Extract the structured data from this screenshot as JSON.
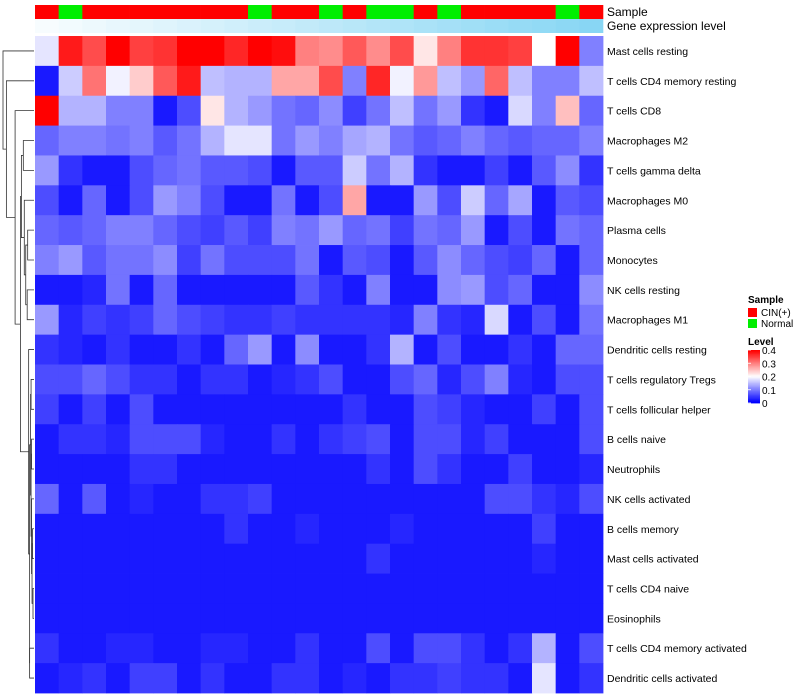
{
  "chart_data": {
    "type": "heatmap",
    "annotation_labels": {
      "sample": "Sample",
      "gene_expression_level": "Gene expression level"
    },
    "rows": [
      "Mast cells resting",
      "T cells CD4 memory resting",
      "T cells CD8",
      "Macrophages M2",
      "T cells gamma delta",
      "Macrophages M0",
      "Plasma cells",
      "Monocytes",
      "NK cells resting",
      "Macrophages M1",
      "Dendritic cells resting",
      "T cells regulatory  Tregs",
      "T cells follicular helper",
      "B cells naive",
      "Neutrophils",
      "NK cells activated",
      "B cells memory",
      "Mast cells activated",
      "T cells CD4 naive",
      "Eosinophils",
      "T cells CD4 memory activated",
      "Dendritic cells activated"
    ],
    "sample_groups": [
      "CIN(+)",
      "Normal",
      "CIN(+)",
      "CIN(+)",
      "CIN(+)",
      "CIN(+)",
      "CIN(+)",
      "CIN(+)",
      "CIN(+)",
      "Normal",
      "CIN(+)",
      "CIN(+)",
      "Normal",
      "CIN(+)",
      "Normal",
      "Normal",
      "CIN(+)",
      "Normal",
      "CIN(+)",
      "CIN(+)",
      "CIN(+)",
      "CIN(+)",
      "Normal",
      "CIN(+)"
    ],
    "gene_expression_level": [
      0.95,
      0.92,
      0.89,
      0.86,
      0.83,
      0.8,
      0.77,
      0.74,
      0.71,
      0.68,
      0.65,
      0.62,
      0.59,
      0.56,
      0.53,
      0.5,
      0.47,
      0.44,
      0.41,
      0.38,
      0.35,
      0.32,
      0.29,
      0.26
    ],
    "values": [
      [
        0.18,
        0.38,
        0.34,
        0.4,
        0.35,
        0.36,
        0.4,
        0.4,
        0.37,
        0.4,
        0.39,
        0.3,
        0.29,
        0.33,
        0.29,
        0.34,
        0.22,
        0.3,
        0.36,
        0.36,
        0.35,
        0.2,
        0.4,
        0.1
      ],
      [
        0.02,
        0.16,
        0.31,
        0.19,
        0.24,
        0.33,
        0.38,
        0.15,
        0.14,
        0.14,
        0.27,
        0.27,
        0.34,
        0.1,
        0.37,
        0.19,
        0.28,
        0.15,
        0.12,
        0.32,
        0.15,
        0.1,
        0.1,
        0.15
      ],
      [
        0.4,
        0.14,
        0.14,
        0.1,
        0.1,
        0.02,
        0.06,
        0.22,
        0.14,
        0.12,
        0.09,
        0.08,
        0.11,
        0.05,
        0.09,
        0.15,
        0.09,
        0.12,
        0.04,
        0.02,
        0.17,
        0.1,
        0.25,
        0.08
      ],
      [
        0.08,
        0.1,
        0.1,
        0.09,
        0.1,
        0.07,
        0.09,
        0.14,
        0.18,
        0.18,
        0.09,
        0.12,
        0.1,
        0.13,
        0.14,
        0.09,
        0.07,
        0.08,
        0.1,
        0.08,
        0.07,
        0.08,
        0.08,
        0.1
      ],
      [
        0.12,
        0.04,
        0.02,
        0.02,
        0.06,
        0.08,
        0.09,
        0.07,
        0.07,
        0.06,
        0.02,
        0.07,
        0.07,
        0.16,
        0.09,
        0.14,
        0.04,
        0.02,
        0.02,
        0.05,
        0.02,
        0.07,
        0.11,
        0.04
      ],
      [
        0.06,
        0.02,
        0.08,
        0.02,
        0.06,
        0.12,
        0.1,
        0.06,
        0.02,
        0.02,
        0.09,
        0.02,
        0.06,
        0.27,
        0.02,
        0.02,
        0.12,
        0.06,
        0.16,
        0.08,
        0.13,
        0.02,
        0.07,
        0.06
      ],
      [
        0.08,
        0.07,
        0.08,
        0.1,
        0.1,
        0.08,
        0.06,
        0.05,
        0.07,
        0.05,
        0.1,
        0.09,
        0.12,
        0.08,
        0.09,
        0.05,
        0.09,
        0.08,
        0.12,
        0.02,
        0.06,
        0.02,
        0.09,
        0.08
      ],
      [
        0.1,
        0.12,
        0.07,
        0.09,
        0.09,
        0.11,
        0.05,
        0.09,
        0.06,
        0.06,
        0.06,
        0.09,
        0.02,
        0.07,
        0.06,
        0.02,
        0.07,
        0.11,
        0.08,
        0.06,
        0.05,
        0.08,
        0.02,
        0.08
      ],
      [
        0.02,
        0.02,
        0.03,
        0.09,
        0.02,
        0.08,
        0.02,
        0.02,
        0.02,
        0.02,
        0.02,
        0.07,
        0.04,
        0.02,
        0.1,
        0.02,
        0.02,
        0.11,
        0.12,
        0.06,
        0.08,
        0.02,
        0.02,
        0.11
      ],
      [
        0.12,
        0.03,
        0.05,
        0.04,
        0.05,
        0.08,
        0.06,
        0.05,
        0.04,
        0.04,
        0.05,
        0.04,
        0.04,
        0.04,
        0.04,
        0.03,
        0.1,
        0.04,
        0.03,
        0.17,
        0.02,
        0.06,
        0.02,
        0.09
      ],
      [
        0.04,
        0.03,
        0.02,
        0.04,
        0.02,
        0.02,
        0.04,
        0.02,
        0.08,
        0.12,
        0.02,
        0.11,
        0.02,
        0.02,
        0.04,
        0.14,
        0.02,
        0.06,
        0.02,
        0.02,
        0.04,
        0.02,
        0.08,
        0.08
      ],
      [
        0.06,
        0.06,
        0.08,
        0.06,
        0.04,
        0.04,
        0.02,
        0.04,
        0.04,
        0.02,
        0.03,
        0.04,
        0.06,
        0.02,
        0.02,
        0.06,
        0.08,
        0.03,
        0.06,
        0.1,
        0.03,
        0.02,
        0.06,
        0.06
      ],
      [
        0.05,
        0.02,
        0.05,
        0.02,
        0.06,
        0.02,
        0.02,
        0.02,
        0.02,
        0.02,
        0.02,
        0.02,
        0.02,
        0.04,
        0.02,
        0.02,
        0.06,
        0.05,
        0.03,
        0.02,
        0.02,
        0.05,
        0.02,
        0.06
      ],
      [
        0.02,
        0.04,
        0.04,
        0.03,
        0.06,
        0.06,
        0.06,
        0.03,
        0.02,
        0.02,
        0.04,
        0.02,
        0.04,
        0.05,
        0.06,
        0.02,
        0.06,
        0.06,
        0.03,
        0.05,
        0.02,
        0.02,
        0.02,
        0.06
      ],
      [
        0.02,
        0.02,
        0.02,
        0.02,
        0.04,
        0.04,
        0.02,
        0.02,
        0.02,
        0.02,
        0.02,
        0.02,
        0.02,
        0.02,
        0.04,
        0.02,
        0.06,
        0.04,
        0.02,
        0.02,
        0.05,
        0.02,
        0.02,
        0.03
      ],
      [
        0.08,
        0.02,
        0.07,
        0.02,
        0.03,
        0.02,
        0.02,
        0.04,
        0.04,
        0.05,
        0.02,
        0.02,
        0.02,
        0.02,
        0.02,
        0.02,
        0.02,
        0.02,
        0.02,
        0.06,
        0.06,
        0.04,
        0.03,
        0.06
      ],
      [
        0.02,
        0.02,
        0.02,
        0.02,
        0.02,
        0.02,
        0.02,
        0.02,
        0.04,
        0.02,
        0.02,
        0.03,
        0.02,
        0.02,
        0.02,
        0.03,
        0.02,
        0.02,
        0.02,
        0.02,
        0.02,
        0.05,
        0.02,
        0.02
      ],
      [
        0.02,
        0.02,
        0.02,
        0.02,
        0.02,
        0.02,
        0.02,
        0.02,
        0.02,
        0.02,
        0.02,
        0.02,
        0.02,
        0.02,
        0.04,
        0.02,
        0.02,
        0.02,
        0.02,
        0.02,
        0.02,
        0.03,
        0.02,
        0.02
      ],
      [
        0.02,
        0.02,
        0.02,
        0.02,
        0.02,
        0.02,
        0.02,
        0.02,
        0.02,
        0.02,
        0.02,
        0.02,
        0.02,
        0.02,
        0.02,
        0.02,
        0.02,
        0.02,
        0.02,
        0.02,
        0.02,
        0.02,
        0.02,
        0.02
      ],
      [
        0.02,
        0.02,
        0.02,
        0.02,
        0.02,
        0.02,
        0.02,
        0.02,
        0.02,
        0.02,
        0.02,
        0.02,
        0.02,
        0.02,
        0.02,
        0.02,
        0.02,
        0.02,
        0.02,
        0.02,
        0.02,
        0.02,
        0.02,
        0.02
      ],
      [
        0.04,
        0.02,
        0.02,
        0.03,
        0.03,
        0.02,
        0.02,
        0.03,
        0.03,
        0.02,
        0.02,
        0.04,
        0.02,
        0.02,
        0.06,
        0.02,
        0.06,
        0.06,
        0.04,
        0.02,
        0.04,
        0.14,
        0.02,
        0.06
      ],
      [
        0.02,
        0.03,
        0.04,
        0.02,
        0.05,
        0.05,
        0.02,
        0.04,
        0.02,
        0.02,
        0.04,
        0.04,
        0.02,
        0.03,
        0.02,
        0.04,
        0.04,
        0.05,
        0.04,
        0.04,
        0.02,
        0.18,
        0.02,
        0.04
      ]
    ],
    "legend": {
      "sample_title": "Sample",
      "sample_items": [
        {
          "label": "CIN(+)",
          "color": "#ff0000"
        },
        {
          "label": "Normal",
          "color": "#00ee00"
        }
      ],
      "level_title": "Level",
      "level_ticks": [
        "0.4",
        "0.3",
        "0.2",
        "0.1",
        "0"
      ],
      "level_tick_values": [
        0.4,
        0.3,
        0.2,
        0.1,
        0
      ],
      "vmin": 0,
      "vmax": 0.4
    },
    "colors": {
      "low": "#0000ff",
      "mid": "#ffffff",
      "high": "#ff0000",
      "annotation_low": "#5ec8f0",
      "annotation_high": "#ffffff"
    },
    "row_dendrogram": {
      "merges": [
        [
          -19,
          -20,
          0.0
        ],
        [
          -17,
          -18,
          0.01
        ],
        [
          1,
          2,
          0.02
        ],
        [
          -14,
          -15,
          0.03
        ],
        [
          -16,
          3,
          0.03
        ],
        [
          4,
          5,
          0.04
        ],
        [
          -12,
          -13,
          0.04
        ],
        [
          7,
          6,
          0.05
        ],
        [
          -21,
          -22,
          0.07
        ],
        [
          8,
          9,
          0.07
        ],
        [
          -11,
          10,
          0.09
        ],
        [
          -9,
          -10,
          0.12
        ],
        [
          -7,
          -8,
          0.11
        ],
        [
          13,
          12,
          0.15
        ],
        [
          -6,
          14,
          0.18
        ],
        [
          -4,
          -5,
          0.2
        ],
        [
          16,
          15,
          0.24
        ],
        [
          17,
          11,
          0.26
        ],
        [
          -3,
          18,
          0.37
        ],
        [
          -2,
          19,
          0.55
        ],
        [
          -1,
          20,
          0.62
        ]
      ]
    }
  }
}
